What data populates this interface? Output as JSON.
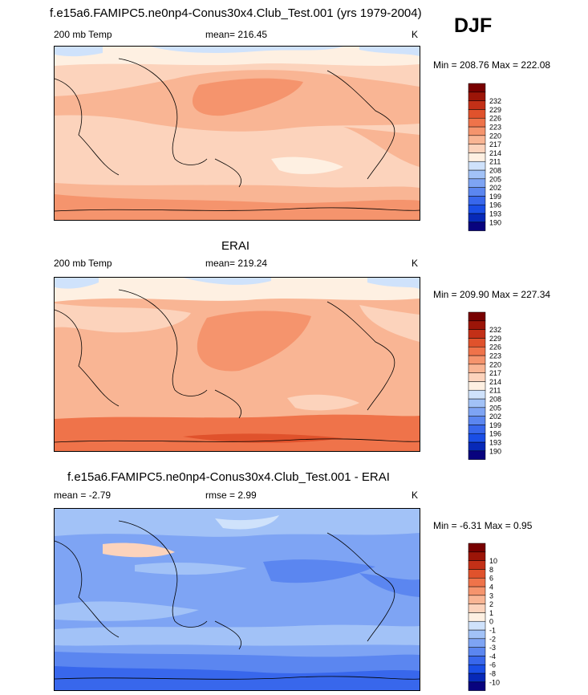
{
  "figure": {
    "title": "f.e15a6.FAMIPC5.ne0np4-Conus30x4.Club_Test.001 (yrs 1979-2004)",
    "season": "DJF"
  },
  "colors": {
    "temp_scale": [
      "#08037e",
      "#0729b8",
      "#1a4ee6",
      "#3867ec",
      "#5b86f0",
      "#7ea4f4",
      "#a2c2f7",
      "#cfe2fb",
      "#fef0e2",
      "#fcd3bc",
      "#f9b594",
      "#f5946d",
      "#ef734a",
      "#e0522c",
      "#c33017",
      "#9c1508",
      "#780000"
    ],
    "diff_scale": [
      "#08037e",
      "#0729b8",
      "#1a4ee6",
      "#3867ec",
      "#5b86f0",
      "#7ea4f4",
      "#a2c2f7",
      "#cfe2fb",
      "#fef0e2",
      "#fcd3bc",
      "#f9b594",
      "#f5946d",
      "#ef734a",
      "#e0522c",
      "#c33017",
      "#9c1508",
      "#780000"
    ]
  },
  "chart_data": [
    {
      "type": "heatmap",
      "panel_title": "",
      "left_label": "200 mb Temp",
      "mean_label": "mean= 216.45",
      "units": "K",
      "minmax_label": "Min = 208.76 Max = 222.08",
      "min": 208.76,
      "max": 222.08,
      "mean": 216.45,
      "colorbar_levels": [
        "190",
        "193",
        "196",
        "199",
        "202",
        "205",
        "208",
        "211",
        "214",
        "217",
        "220",
        "223",
        "226",
        "229",
        "232"
      ]
    },
    {
      "type": "heatmap",
      "panel_title": "ERAI",
      "left_label": "200 mb Temp",
      "mean_label": "mean= 219.24",
      "units": "K",
      "minmax_label": "Min = 209.90 Max = 227.34",
      "min": 209.9,
      "max": 227.34,
      "mean": 219.24,
      "colorbar_levels": [
        "190",
        "193",
        "196",
        "199",
        "202",
        "205",
        "208",
        "211",
        "214",
        "217",
        "220",
        "223",
        "226",
        "229",
        "232"
      ]
    },
    {
      "type": "heatmap",
      "panel_title": "f.e15a6.FAMIPC5.ne0np4-Conus30x4.Club_Test.001 - ERAI",
      "left_label": "mean =  -2.79",
      "mean_label": "rmse =   2.99",
      "units": "K",
      "minmax_label": "Min =  -6.31 Max =   0.95",
      "min": -6.31,
      "max": 0.95,
      "mean": -2.79,
      "rmse": 2.99,
      "colorbar_levels": [
        "-10",
        "-8",
        "-6",
        "-4",
        "-3",
        "-2",
        "-1",
        "0",
        "1",
        "2",
        "3",
        "4",
        "6",
        "8",
        "10"
      ]
    }
  ]
}
